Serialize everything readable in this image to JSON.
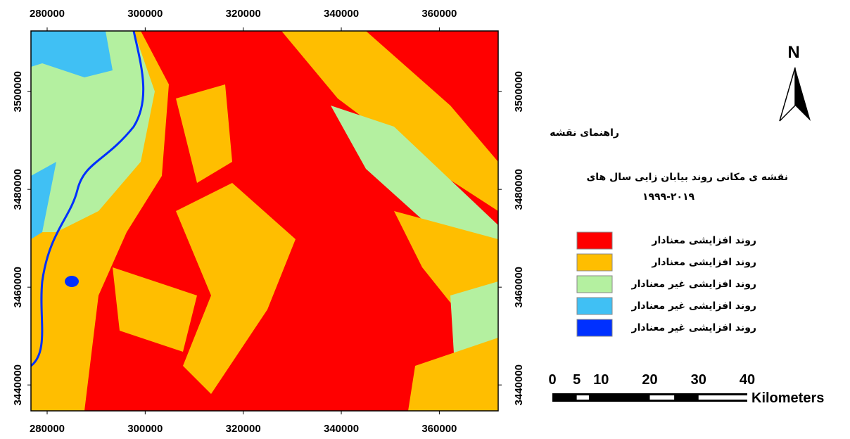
{
  "map": {
    "xlim": [
      276700,
      372000
    ],
    "ylim": [
      3434700,
      3512400
    ],
    "xticks": [
      280000,
      300000,
      320000,
      340000,
      360000
    ],
    "yticks": [
      3440000,
      3460000,
      3480000,
      3500000
    ],
    "north_arrow": "N",
    "legend_title": "راهنمای نقشه",
    "title_lines": [
      "نقشه ی مکانی روند بیابان زایی سال های",
      "۱۹۹۹-۲۰۱۹"
    ],
    "legend": [
      {
        "name": "روند افزایشی معنادار",
        "color": "#ff0000"
      },
      {
        "name": "روند افزایشی معنادار",
        "color": "#ffbe00"
      },
      {
        "name": "روند افزایشی غیر معنادار",
        "color": "#b4f0a0"
      },
      {
        "name": "روند افزایشی غیر معنادار",
        "color": "#40c0f4"
      },
      {
        "name": "روند افزایشی غیر معنادار",
        "color": "#0030ff"
      }
    ],
    "scale_bar": {
      "ticks": [
        0,
        5,
        10,
        20,
        30,
        40
      ],
      "unit": "Kilometers"
    }
  }
}
